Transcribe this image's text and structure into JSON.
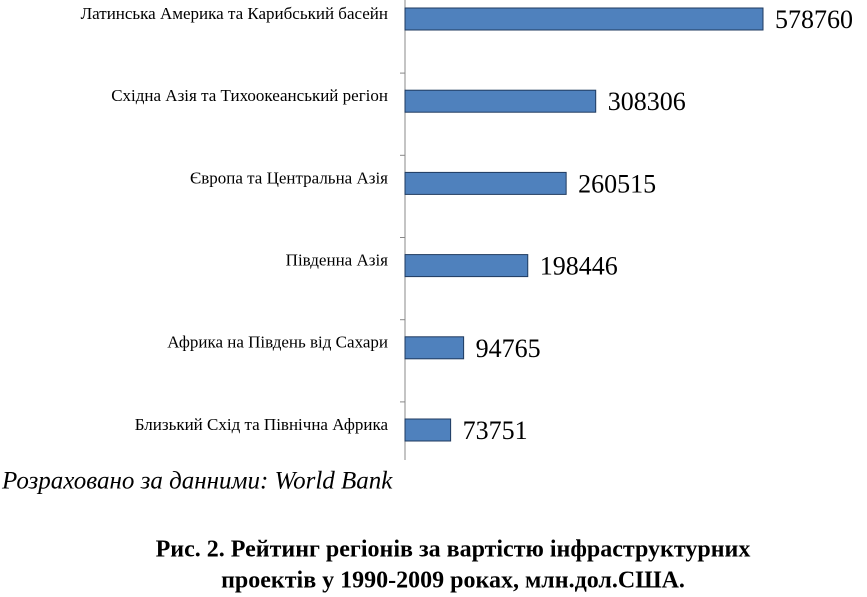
{
  "chart_data": {
    "type": "bar",
    "orientation": "horizontal",
    "categories": [
      "Латинська Америка та Карибський басейн",
      "Східна Азія та Тихоокеанський регіон",
      "Європа та Центральна Азія",
      "Південна Азія",
      "Африка на Південь від Сахари",
      "Близький Схід та Північна Африка"
    ],
    "values": [
      578760,
      308306,
      260515,
      198446,
      94765,
      73751
    ],
    "color": "#4f81bd",
    "source": "Розраховано за данними: World Bank",
    "caption": [
      "Рис. 2. Рейтинг регіонів за вартістю інфраструктурних",
      "проектів у 1990-2009 роках, млн.дол.США."
    ]
  }
}
